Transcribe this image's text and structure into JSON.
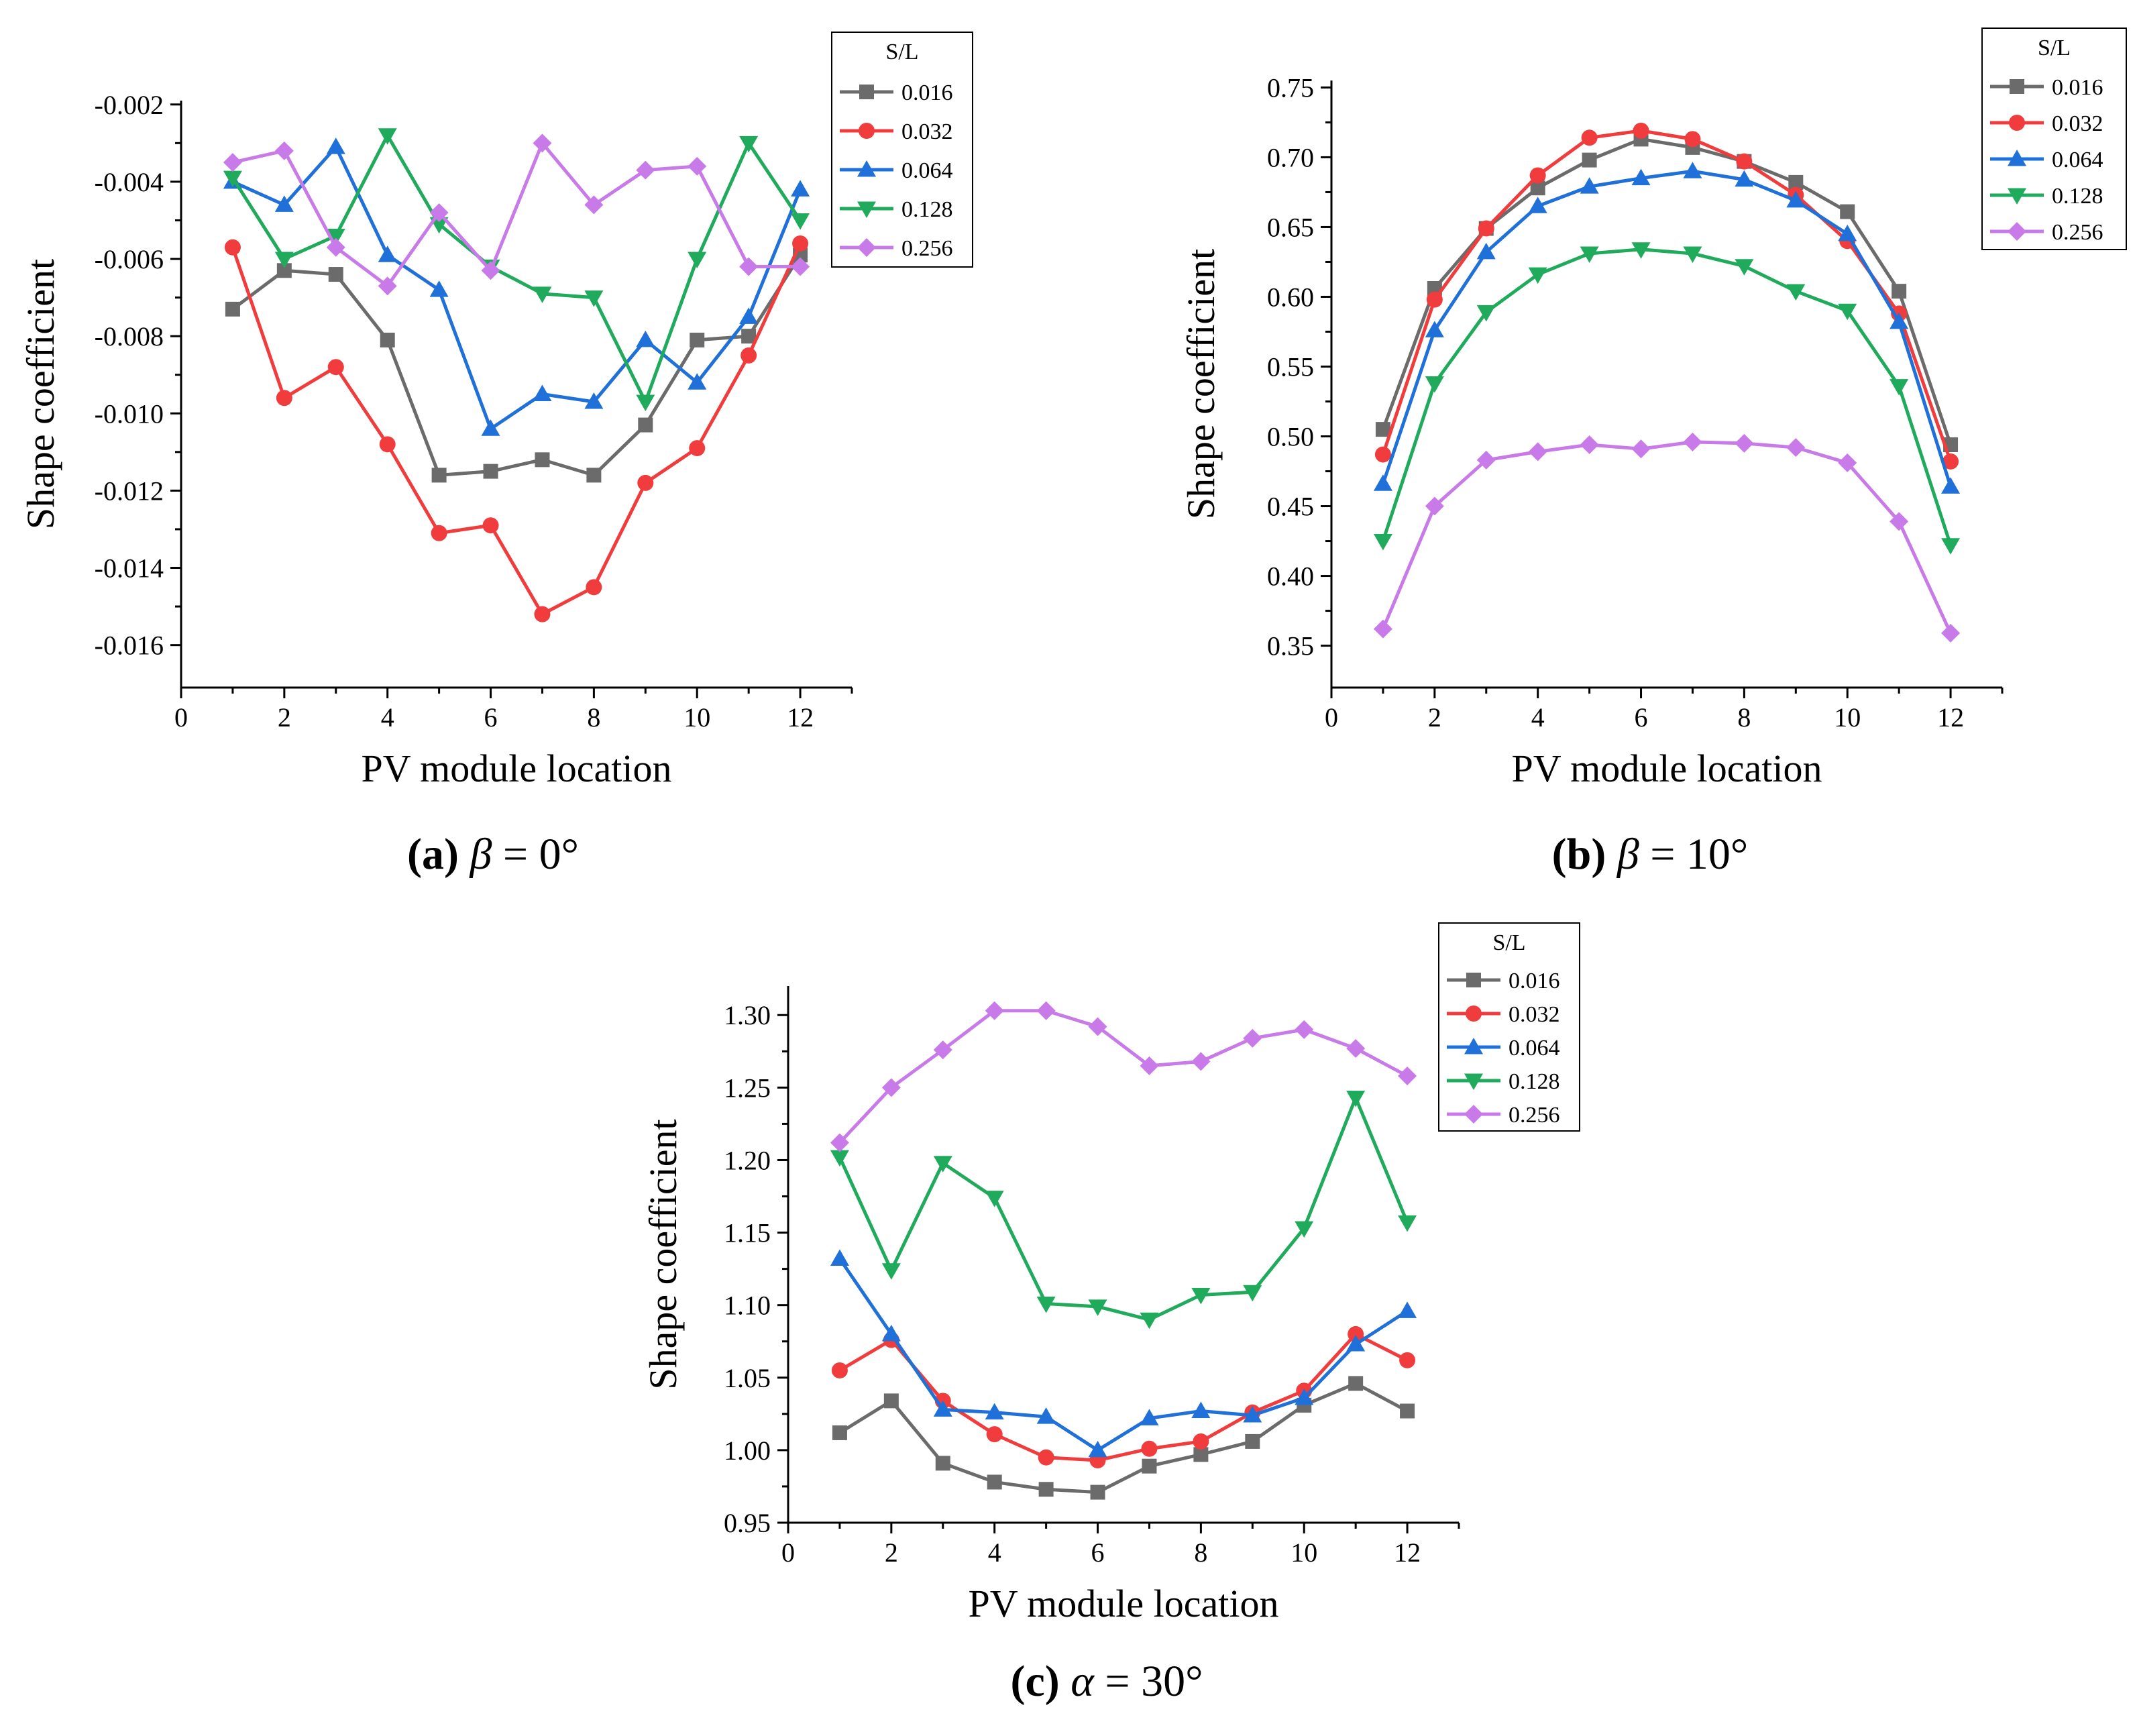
{
  "legend_title": "S/L",
  "series_names": [
    "0.016",
    "0.032",
    "0.064",
    "0.128",
    "0.256"
  ],
  "series_colors": [
    "#6b6b6b",
    "#f03c3c",
    "#1f70d8",
    "#1faa5c",
    "#c77ae8"
  ],
  "chart_data": [
    {
      "type": "line",
      "caption": {
        "letter": "(a)",
        "symbol": "β",
        "rest": " = 0°"
      },
      "xlabel": "PV module location",
      "ylabel": "Shape coefficient",
      "xlim": [
        0,
        13
      ],
      "ylim": [
        -0.0171,
        -0.0019
      ],
      "x_ticks": [
        0,
        2,
        4,
        6,
        8,
        10,
        12
      ],
      "x_tick_labels": [
        "0",
        "2",
        "4",
        "6",
        "8",
        "10",
        "12"
      ],
      "y_ticks": [
        -0.002,
        -0.004,
        -0.006,
        -0.008,
        -0.01,
        -0.012,
        -0.014,
        -0.016
      ],
      "y_tick_labels": [
        "-0.002",
        "-0.004",
        "-0.006",
        "-0.008",
        "-0.010",
        "-0.012",
        "-0.014",
        "-0.016"
      ],
      "x": [
        1,
        2,
        3,
        4,
        5,
        6,
        7,
        8,
        9,
        10,
        11,
        12
      ],
      "series": [
        {
          "name": "0.016",
          "marker": "square",
          "values": [
            -0.0073,
            -0.0063,
            -0.0064,
            -0.0081,
            -0.0116,
            -0.0115,
            -0.0112,
            -0.0116,
            -0.0103,
            -0.0081,
            -0.008,
            -0.0059
          ]
        },
        {
          "name": "0.032",
          "marker": "circle",
          "values": [
            -0.0057,
            -0.0096,
            -0.0088,
            -0.0108,
            -0.0131,
            -0.0129,
            -0.0152,
            -0.0145,
            -0.0118,
            -0.0109,
            -0.0085,
            -0.0056
          ]
        },
        {
          "name": "0.064",
          "marker": "triangle-up",
          "values": [
            -0.004,
            -0.0046,
            -0.0031,
            -0.0059,
            -0.0068,
            -0.0104,
            -0.0095,
            -0.0097,
            -0.0081,
            -0.0092,
            -0.0075,
            -0.0042
          ]
        },
        {
          "name": "0.128",
          "marker": "triangle-down",
          "values": [
            -0.0039,
            -0.006,
            -0.0054,
            -0.0028,
            -0.0051,
            -0.0062,
            -0.0069,
            -0.007,
            -0.0097,
            -0.006,
            -0.003,
            -0.005
          ]
        },
        {
          "name": "0.256",
          "marker": "diamond",
          "values": [
            -0.0035,
            -0.0032,
            -0.0057,
            -0.0067,
            -0.0048,
            -0.0063,
            -0.003,
            -0.0046,
            -0.0037,
            -0.0036,
            -0.0062,
            -0.0062
          ]
        }
      ]
    },
    {
      "type": "line",
      "caption": {
        "letter": "(b)",
        "symbol": "β",
        "rest": " = 10°"
      },
      "xlabel": "PV module location",
      "ylabel": "Shape coefficient",
      "xlim": [
        0,
        13
      ],
      "ylim": [
        0.32,
        0.755
      ],
      "x_ticks": [
        0,
        2,
        4,
        6,
        8,
        10,
        12
      ],
      "x_tick_labels": [
        "0",
        "2",
        "4",
        "6",
        "8",
        "10",
        "12"
      ],
      "y_ticks": [
        0.35,
        0.4,
        0.45,
        0.5,
        0.55,
        0.6,
        0.65,
        0.7,
        0.75
      ],
      "y_tick_labels": [
        "0.35",
        "0.40",
        "0.45",
        "0.50",
        "0.55",
        "0.60",
        "0.65",
        "0.70",
        "0.75"
      ],
      "x": [
        1,
        2,
        3,
        4,
        5,
        6,
        7,
        8,
        9,
        10,
        11,
        12
      ],
      "series": [
        {
          "name": "0.016",
          "marker": "square",
          "values": [
            0.505,
            0.606,
            0.649,
            0.678,
            0.698,
            0.713,
            0.707,
            0.697,
            0.682,
            0.661,
            0.604,
            0.494
          ]
        },
        {
          "name": "0.032",
          "marker": "circle",
          "values": [
            0.487,
            0.598,
            0.649,
            0.687,
            0.714,
            0.719,
            0.713,
            0.697,
            0.673,
            0.64,
            0.588,
            0.482
          ]
        },
        {
          "name": "0.064",
          "marker": "triangle-up",
          "values": [
            0.466,
            0.576,
            0.632,
            0.665,
            0.679,
            0.685,
            0.69,
            0.684,
            0.669,
            0.645,
            0.582,
            0.464
          ]
        },
        {
          "name": "0.128",
          "marker": "triangle-down",
          "values": [
            0.425,
            0.538,
            0.589,
            0.616,
            0.631,
            0.634,
            0.631,
            0.622,
            0.604,
            0.59,
            0.536,
            0.422
          ]
        },
        {
          "name": "0.256",
          "marker": "diamond",
          "values": [
            0.362,
            0.45,
            0.483,
            0.489,
            0.494,
            0.491,
            0.496,
            0.495,
            0.492,
            0.481,
            0.439,
            0.359
          ]
        }
      ]
    },
    {
      "type": "line",
      "caption": {
        "letter": "(c)",
        "symbol": "α",
        "rest": " = 30°"
      },
      "xlabel": "PV module location",
      "ylabel": "Shape coefficient",
      "xlim": [
        0,
        13
      ],
      "ylim": [
        0.95,
        1.32
      ],
      "x_ticks": [
        0,
        2,
        4,
        6,
        8,
        10,
        12
      ],
      "x_tick_labels": [
        "0",
        "2",
        "4",
        "6",
        "8",
        "10",
        "12"
      ],
      "y_ticks": [
        0.95,
        1.0,
        1.05,
        1.1,
        1.15,
        1.2,
        1.25,
        1.3
      ],
      "y_tick_labels": [
        "0.95",
        "1.00",
        "1.05",
        "1.10",
        "1.15",
        "1.20",
        "1.25",
        "1.30"
      ],
      "x": [
        1,
        2,
        3,
        4,
        5,
        6,
        7,
        8,
        9,
        10,
        11,
        12
      ],
      "series": [
        {
          "name": "0.016",
          "marker": "square",
          "values": [
            1.012,
            1.034,
            0.991,
            0.978,
            0.973,
            0.971,
            0.989,
            0.997,
            1.006,
            1.031,
            1.046,
            1.027
          ]
        },
        {
          "name": "0.032",
          "marker": "circle",
          "values": [
            1.055,
            1.076,
            1.034,
            1.011,
            0.995,
            0.993,
            1.001,
            1.006,
            1.026,
            1.041,
            1.08,
            1.062
          ]
        },
        {
          "name": "0.064",
          "marker": "triangle-up",
          "values": [
            1.132,
            1.08,
            1.028,
            1.026,
            1.023,
            1.0,
            1.022,
            1.027,
            1.024,
            1.036,
            1.073,
            1.096
          ]
        },
        {
          "name": "0.128",
          "marker": "triangle-down",
          "values": [
            1.202,
            1.124,
            1.198,
            1.174,
            1.101,
            1.099,
            1.09,
            1.107,
            1.109,
            1.153,
            1.243,
            1.157
          ]
        },
        {
          "name": "0.256",
          "marker": "diamond",
          "values": [
            1.212,
            1.25,
            1.276,
            1.303,
            1.303,
            1.292,
            1.265,
            1.268,
            1.284,
            1.29,
            1.277,
            1.258
          ]
        }
      ]
    }
  ]
}
